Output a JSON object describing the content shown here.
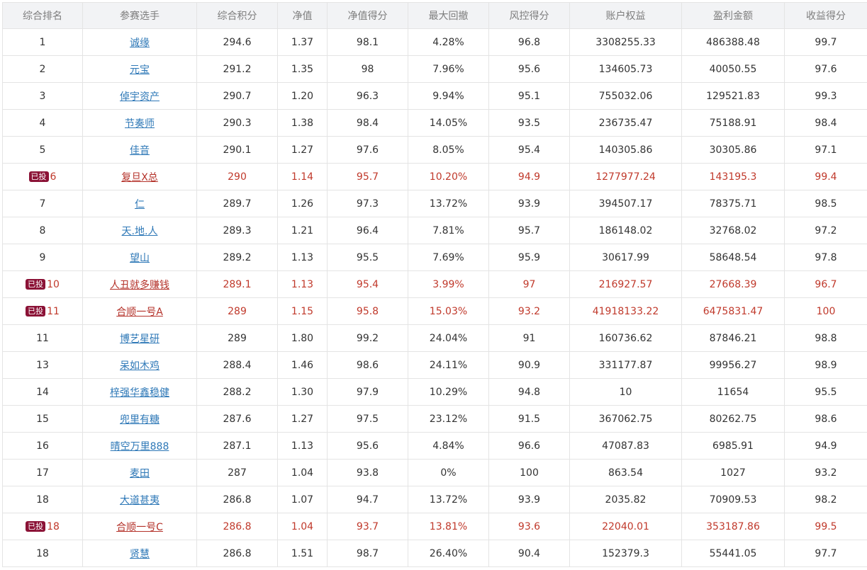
{
  "columns": [
    "综合排名",
    "参赛选手",
    "综合积分",
    "净值",
    "净值得分",
    "最大回撤",
    "风控得分",
    "账户权益",
    "盈利金额",
    "收益得分"
  ],
  "badge_label": "已投",
  "colors": {
    "link": "#2e78b7",
    "invested_text": "#c0392b",
    "badge_bg": "#8b1236",
    "header_bg": "#f2f3f5"
  },
  "rows": [
    {
      "rank": "1",
      "name": "诚缘",
      "score": "294.6",
      "nav": "1.37",
      "nav_score": "98.1",
      "drawdown": "4.28%",
      "risk_score": "96.8",
      "equity": "3308255.33",
      "profit": "486388.48",
      "return_score": "99.7",
      "invested": false
    },
    {
      "rank": "2",
      "name": "元宝",
      "score": "291.2",
      "nav": "1.35",
      "nav_score": "98",
      "drawdown": "7.96%",
      "risk_score": "95.6",
      "equity": "134605.73",
      "profit": "40050.55",
      "return_score": "97.6",
      "invested": false
    },
    {
      "rank": "3",
      "name": "倬宇资产",
      "score": "290.7",
      "nav": "1.20",
      "nav_score": "96.3",
      "drawdown": "9.94%",
      "risk_score": "95.1",
      "equity": "755032.06",
      "profit": "129521.83",
      "return_score": "99.3",
      "invested": false
    },
    {
      "rank": "4",
      "name": "节奏师",
      "score": "290.3",
      "nav": "1.38",
      "nav_score": "98.4",
      "drawdown": "14.05%",
      "risk_score": "93.5",
      "equity": "236735.47",
      "profit": "75188.91",
      "return_score": "98.4",
      "invested": false
    },
    {
      "rank": "5",
      "name": "佳音",
      "score": "290.1",
      "nav": "1.27",
      "nav_score": "97.6",
      "drawdown": "8.05%",
      "risk_score": "95.4",
      "equity": "140305.86",
      "profit": "30305.86",
      "return_score": "97.1",
      "invested": false
    },
    {
      "rank": "6",
      "name": "复旦X总",
      "score": "290",
      "nav": "1.14",
      "nav_score": "95.7",
      "drawdown": "10.20%",
      "risk_score": "94.9",
      "equity": "1277977.24",
      "profit": "143195.3",
      "return_score": "99.4",
      "invested": true
    },
    {
      "rank": "7",
      "name": "仁",
      "score": "289.7",
      "nav": "1.26",
      "nav_score": "97.3",
      "drawdown": "13.72%",
      "risk_score": "93.9",
      "equity": "394507.17",
      "profit": "78375.71",
      "return_score": "98.5",
      "invested": false
    },
    {
      "rank": "8",
      "name": "天.地.人",
      "score": "289.3",
      "nav": "1.21",
      "nav_score": "96.4",
      "drawdown": "7.81%",
      "risk_score": "95.7",
      "equity": "186148.02",
      "profit": "32768.02",
      "return_score": "97.2",
      "invested": false
    },
    {
      "rank": "9",
      "name": "望山",
      "score": "289.2",
      "nav": "1.13",
      "nav_score": "95.5",
      "drawdown": "7.69%",
      "risk_score": "95.9",
      "equity": "30617.99",
      "profit": "58648.54",
      "return_score": "97.8",
      "invested": false
    },
    {
      "rank": "10",
      "name": "人丑就多赚钱",
      "score": "289.1",
      "nav": "1.13",
      "nav_score": "95.4",
      "drawdown": "3.99%",
      "risk_score": "97",
      "equity": "216927.57",
      "profit": "27668.39",
      "return_score": "96.7",
      "invested": true
    },
    {
      "rank": "11",
      "name": "合顺一号A",
      "score": "289",
      "nav": "1.15",
      "nav_score": "95.8",
      "drawdown": "15.03%",
      "risk_score": "93.2",
      "equity": "41918133.22",
      "profit": "6475831.47",
      "return_score": "100",
      "invested": true
    },
    {
      "rank": "11",
      "name": "博艺星研",
      "score": "289",
      "nav": "1.80",
      "nav_score": "99.2",
      "drawdown": "24.04%",
      "risk_score": "91",
      "equity": "160736.62",
      "profit": "87846.21",
      "return_score": "98.8",
      "invested": false
    },
    {
      "rank": "13",
      "name": "呆如木鸡",
      "score": "288.4",
      "nav": "1.46",
      "nav_score": "98.6",
      "drawdown": "24.11%",
      "risk_score": "90.9",
      "equity": "331177.87",
      "profit": "99956.27",
      "return_score": "98.9",
      "invested": false
    },
    {
      "rank": "14",
      "name": "梓强华鑫稳健",
      "score": "288.2",
      "nav": "1.30",
      "nav_score": "97.9",
      "drawdown": "10.29%",
      "risk_score": "94.8",
      "equity": "10",
      "profit": "11654",
      "return_score": "95.5",
      "invested": false
    },
    {
      "rank": "15",
      "name": "兜里有糖",
      "score": "287.6",
      "nav": "1.27",
      "nav_score": "97.5",
      "drawdown": "23.12%",
      "risk_score": "91.5",
      "equity": "367062.75",
      "profit": "80262.75",
      "return_score": "98.6",
      "invested": false
    },
    {
      "rank": "16",
      "name": "晴空万里888",
      "score": "287.1",
      "nav": "1.13",
      "nav_score": "95.6",
      "drawdown": "4.84%",
      "risk_score": "96.6",
      "equity": "47087.83",
      "profit": "6985.91",
      "return_score": "94.9",
      "invested": false
    },
    {
      "rank": "17",
      "name": "麦田",
      "score": "287",
      "nav": "1.04",
      "nav_score": "93.8",
      "drawdown": "0%",
      "risk_score": "100",
      "equity": "863.54",
      "profit": "1027",
      "return_score": "93.2",
      "invested": false
    },
    {
      "rank": "18",
      "name": "大道甚夷",
      "score": "286.8",
      "nav": "1.07",
      "nav_score": "94.7",
      "drawdown": "13.72%",
      "risk_score": "93.9",
      "equity": "2035.82",
      "profit": "70909.53",
      "return_score": "98.2",
      "invested": false
    },
    {
      "rank": "18",
      "name": "合顺一号C",
      "score": "286.8",
      "nav": "1.04",
      "nav_score": "93.7",
      "drawdown": "13.81%",
      "risk_score": "93.6",
      "equity": "22040.01",
      "profit": "353187.86",
      "return_score": "99.5",
      "invested": true
    },
    {
      "rank": "18",
      "name": "贤慧",
      "score": "286.8",
      "nav": "1.51",
      "nav_score": "98.7",
      "drawdown": "26.40%",
      "risk_score": "90.4",
      "equity": "152379.3",
      "profit": "55441.05",
      "return_score": "97.7",
      "invested": false
    }
  ]
}
